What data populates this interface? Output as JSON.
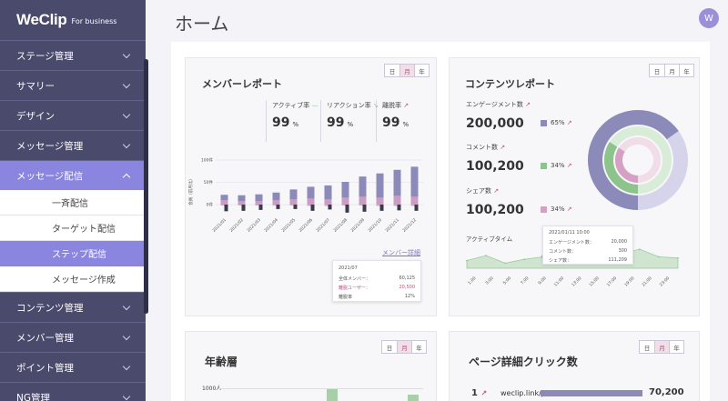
{
  "sidebar": {
    "logo": "WeClip",
    "logo_sub": "For business",
    "items": [
      {
        "label": "ステージ管理"
      },
      {
        "label": "サマリー"
      },
      {
        "label": "デザイン"
      },
      {
        "label": "メッセージ管理"
      },
      {
        "label": "メッセージ配信"
      }
    ],
    "sub_items": [
      {
        "label": "一斉配信"
      },
      {
        "label": "ターゲット配信"
      },
      {
        "label": "ステップ配信"
      },
      {
        "label": "メッセージ作成"
      }
    ],
    "items_after": [
      {
        "label": "コンテンツ管理"
      },
      {
        "label": "メンバー管理"
      },
      {
        "label": "ポイント管理"
      },
      {
        "label": "NG管理"
      }
    ]
  },
  "header": {
    "title": "ホーム",
    "avatar": "W"
  },
  "period": {
    "day": "日",
    "month": "月",
    "year": "年"
  },
  "member_report": {
    "title": "メンバーレポート",
    "metrics": [
      {
        "label": "アクティブ率",
        "value": "99",
        "unit": "%"
      },
      {
        "label": "リアクション率",
        "value": "99",
        "unit": "%"
      },
      {
        "label": "離脱率",
        "value": "99",
        "unit": "%"
      }
    ],
    "link": "メンバー詳細",
    "tooltip": {
      "date": "2021/07",
      "rows": [
        {
          "label": "全体メンバー：",
          "value": "60,125"
        },
        {
          "label": "離脱ユーザー：",
          "value": "20,500"
        },
        {
          "label": "離脱率",
          "value": "12%"
        }
      ]
    }
  },
  "chart_data": [
    {
      "type": "bar",
      "ylabel": "会員（前月比）",
      "y_ticks": [
        "100件",
        "50件",
        "0件"
      ],
      "ylim": [
        -20,
        100
      ],
      "categories": [
        "2021/01",
        "2021/02",
        "2021/03",
        "2021/04",
        "2021/05",
        "2021/06",
        "2021/07",
        "2021/08",
        "2021/09",
        "2021/10",
        "2021/11",
        "2021/12"
      ],
      "series": [
        {
          "values": [
            22,
            21,
            23,
            27,
            34,
            40,
            43,
            51,
            63,
            70,
            78,
            85
          ]
        },
        {
          "values": [
            -2,
            -2,
            -2,
            -2,
            -2,
            -3,
            -3,
            -2,
            -2,
            -3,
            -3,
            -3
          ]
        },
        {
          "values": [
            -15,
            -14,
            -12,
            -10,
            -10,
            -14,
            -11,
            -18,
            -16,
            -14,
            -13,
            -14
          ]
        },
        {
          "values": [
            10,
            8,
            8,
            10,
            12,
            14,
            12,
            16,
            18,
            16,
            20,
            18
          ]
        }
      ]
    },
    {
      "type": "area",
      "title": "アクティブタイム",
      "categories": [
        "1:00",
        "3:00",
        "5:00",
        "7:00",
        "9:00",
        "11:00",
        "13:00",
        "15:00",
        "17:00",
        "19:00",
        "21:00",
        "23:00"
      ],
      "values": [
        6,
        10,
        4,
        7,
        9,
        13,
        18,
        16,
        11,
        15,
        9,
        8
      ]
    },
    {
      "type": "pie",
      "title": "コンテンツレポート",
      "series": [
        {
          "value_pct": 65
        },
        {
          "value_pct": 34
        },
        {
          "value_pct": 34
        }
      ]
    }
  ],
  "content_report": {
    "title": "コンテンツレポート",
    "metrics": [
      {
        "label": "エンゲージメント数",
        "value": "200,000",
        "pct": "65%",
        "color": "#8c8ab8"
      },
      {
        "label": "コメント数",
        "value": "100,200",
        "pct": "34%",
        "color": "#8cc48c"
      },
      {
        "label": "シェア数",
        "value": "100,200",
        "pct": "34%",
        "color": "#d6a0c4"
      }
    ],
    "active_time_label": "アクティブタイム",
    "tooltip": {
      "date": "2021/01/11 10:00",
      "rows": [
        {
          "label": "エンゲージメント数：",
          "value": "20,000"
        },
        {
          "label": "コメント数：",
          "value": "300"
        },
        {
          "label": "シェア数：",
          "value": "111,209"
        }
      ]
    }
  },
  "age": {
    "title": "年齢層",
    "ytick": "1000人"
  },
  "page_clicks": {
    "title": "ページ詳細クリック数",
    "rows": [
      {
        "rank": "1",
        "url": "weclip.link/p/",
        "value": "70,200"
      }
    ]
  },
  "colors": {
    "sidebar": "#4a4a6c",
    "accent": "#8a86e0",
    "bar": "#8c8ab8",
    "pink": "#d6a0c4",
    "green": "#8cc48c",
    "dark": "#3a3a4a"
  }
}
